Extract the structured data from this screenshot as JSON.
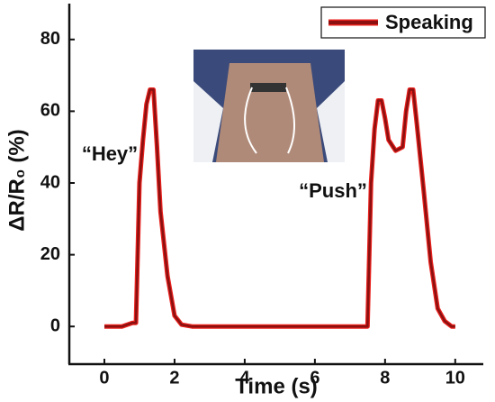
{
  "chart_data": {
    "type": "line",
    "xlabel": "Time (s)",
    "ylabel": "ΔR/R₀ (%)",
    "xlim": [
      -1,
      10.8
    ],
    "ylim": [
      -10.5,
      90
    ],
    "xticks": [
      0,
      2,
      4,
      6,
      8,
      10
    ],
    "yticks": [
      0,
      20,
      40,
      60,
      80
    ],
    "legend": "top-right",
    "annotations": [
      "“Hey”",
      "“Push”"
    ],
    "series": [
      {
        "name": "Speaking",
        "color": "#8b1010",
        "x": [
          0,
          0.5,
          0.8,
          0.9,
          1.0,
          1.1,
          1.2,
          1.3,
          1.4,
          1.5,
          1.6,
          1.8,
          2.0,
          2.2,
          2.5,
          7.5,
          7.6,
          7.7,
          7.8,
          7.9,
          8.0,
          8.1,
          8.3,
          8.5,
          8.6,
          8.7,
          8.8,
          8.9,
          9.1,
          9.3,
          9.5,
          9.7,
          9.9,
          10
        ],
        "values": [
          0,
          0,
          1,
          1,
          40,
          52,
          62,
          66,
          66,
          50,
          32,
          14,
          3,
          0.5,
          0,
          0,
          40,
          55,
          63,
          63,
          58,
          52,
          49,
          50,
          60,
          66,
          66,
          57,
          38,
          18,
          5,
          1.5,
          0,
          0
        ]
      }
    ]
  }
}
